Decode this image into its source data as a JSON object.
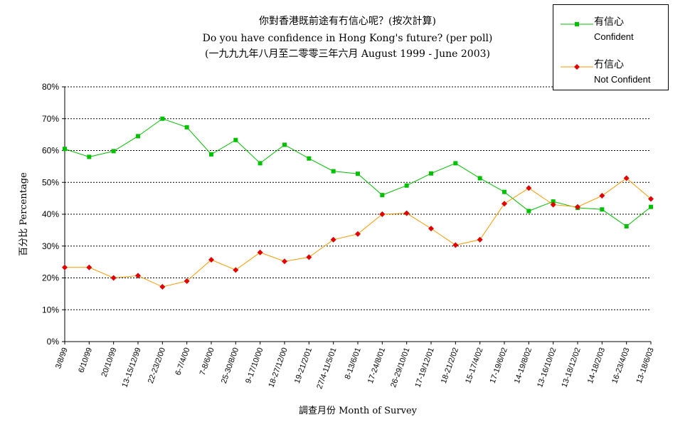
{
  "chart_data": {
    "type": "line",
    "title": "你對香港既前途有冇信心呢？(按次計算)",
    "subtitle": "Do you have confidence in Hong Kong's future? (per poll)",
    "subtitle2": "(一九九九年八月至二零零三年六月 August 1999 - June 2003)",
    "xlabel": "調查月份 Month of Survey",
    "ylabel": "百分比 Percentage",
    "ylim": [
      0,
      80
    ],
    "y_ticks": [
      "0%",
      "10%",
      "20%",
      "30%",
      "40%",
      "50%",
      "60%",
      "70%",
      "80%"
    ],
    "y_tick_values": [
      0,
      10,
      20,
      30,
      40,
      50,
      60,
      70,
      80
    ],
    "grid": true,
    "legend_position": "top-right",
    "categories": [
      "3/8/99",
      "6/10/99",
      "20/10/99",
      "13-15/12/99",
      "22-23/2/00",
      "6-7/4/00",
      "7-8/6/00",
      "25-30/8/00",
      "9-17/10/00",
      "18-27/12/00",
      "19-21/2/01",
      "27/4-11/5/01",
      "8-13/6/01",
      "17-24/8/01",
      "26-29/10/01",
      "17-19/12/01",
      "18-21/2/02",
      "15-17/4/02",
      "17-19/6/02",
      "14-19/8/02",
      "13-16/10/02",
      "13-18/12/02",
      "14-18/2/03",
      "16-23/4/03",
      "13-18/6/03"
    ],
    "series": [
      {
        "name_zh": "有信心",
        "name": "Confident",
        "color": "#00c000",
        "marker": "square",
        "values": [
          60.5,
          58,
          59.8,
          64.5,
          70,
          67.3,
          58.8,
          63.3,
          56,
          61.8,
          57.5,
          53.5,
          52.7,
          46,
          49,
          52.8,
          56,
          51.3,
          47,
          41,
          44,
          42,
          41.5,
          36.2,
          42.3
        ]
      },
      {
        "name_zh": "冇信心",
        "name": "Not Confident",
        "color": "#ff9900",
        "marker_color": "#e00000",
        "marker": "diamond",
        "values": [
          23.3,
          23.3,
          20,
          20.7,
          17.2,
          19,
          25.7,
          22.5,
          28,
          25.2,
          26.5,
          32,
          33.8,
          40,
          40.3,
          35.5,
          30.3,
          32,
          43.3,
          48.2,
          43,
          42.3,
          45.8,
          51.3,
          44.8
        ]
      }
    ]
  }
}
